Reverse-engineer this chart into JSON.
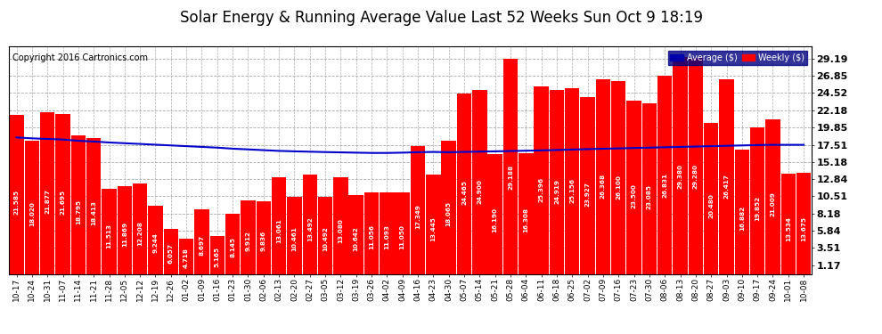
{
  "title": "Solar Energy & Running Average Value Last 52 Weeks Sun Oct 9 18:19",
  "copyright": "Copyright 2016 Cartronics.com",
  "categories": [
    "10-17",
    "10-24",
    "10-31",
    "11-07",
    "11-14",
    "11-21",
    "11-28",
    "12-05",
    "12-12",
    "12-19",
    "12-26",
    "01-02",
    "01-09",
    "01-16",
    "01-23",
    "01-30",
    "02-06",
    "02-13",
    "02-20",
    "02-27",
    "03-05",
    "03-12",
    "03-19",
    "03-26",
    "04-02",
    "04-09",
    "04-16",
    "04-23",
    "04-30",
    "05-07",
    "05-14",
    "05-21",
    "05-28",
    "06-04",
    "06-11",
    "06-18",
    "06-25",
    "07-02",
    "07-09",
    "07-16",
    "07-23",
    "07-30",
    "08-06",
    "08-13",
    "08-20",
    "08-27",
    "09-03",
    "09-10",
    "09-17",
    "09-24",
    "10-01",
    "10-08"
  ],
  "weekly_values": [
    21.585,
    18.02,
    21.877,
    21.695,
    18.795,
    18.413,
    11.513,
    11.869,
    12.208,
    9.244,
    6.057,
    4.718,
    8.697,
    5.165,
    8.145,
    9.912,
    9.836,
    13.061,
    10.461,
    13.492,
    10.492,
    13.08,
    10.642,
    11.056,
    11.093,
    11.05,
    17.349,
    13.445,
    18.065,
    24.465,
    24.9,
    16.19,
    29.188,
    16.308,
    25.396,
    24.919,
    25.156,
    23.927,
    26.368,
    26.1,
    23.5,
    23.085,
    26.831,
    29.38,
    29.28,
    20.48,
    26.417,
    16.882,
    19.852,
    21.009,
    13.534,
    13.675
  ],
  "average_values": [
    18.5,
    18.38,
    18.3,
    18.22,
    18.05,
    17.95,
    17.82,
    17.72,
    17.62,
    17.52,
    17.42,
    17.32,
    17.22,
    17.12,
    16.98,
    16.88,
    16.78,
    16.68,
    16.62,
    16.57,
    16.52,
    16.48,
    16.44,
    16.4,
    16.4,
    16.44,
    16.5,
    16.54,
    16.5,
    16.54,
    16.58,
    16.62,
    16.66,
    16.7,
    16.75,
    16.8,
    16.86,
    16.92,
    16.97,
    17.02,
    17.07,
    17.12,
    17.17,
    17.22,
    17.27,
    17.32,
    17.37,
    17.42,
    17.47,
    17.5,
    17.5,
    17.5
  ],
  "bar_color": "#ff0000",
  "line_color": "#0000cc",
  "background_color": "#ffffff",
  "plot_bg_color": "#ffffff",
  "grid_color": "#aaaaaa",
  "yticks": [
    1.17,
    3.51,
    5.84,
    8.18,
    10.51,
    12.84,
    15.18,
    17.51,
    19.85,
    22.18,
    24.52,
    26.85,
    29.19
  ],
  "legend_avg_color": "#0000aa",
  "legend_weekly_color": "#ff0000",
  "title_fontsize": 12,
  "copyright_fontsize": 7,
  "bar_value_fontsize": 5.2,
  "tick_fontsize": 6.5,
  "ytick_fontsize": 8
}
